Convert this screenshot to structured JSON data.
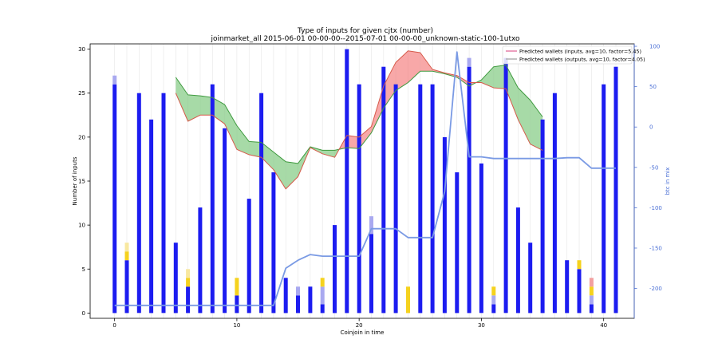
{
  "chart_data": {
    "type": "bar",
    "title": "Type of inputs for given cjtx (number)",
    "subtitle": "joinmarket_all 2015-06-01 00-00-00--2015-07-01 00-00-00_unknown-static-100-1utxo",
    "xlabel": "Coinjoin in time",
    "ylabel": "Number of inputs",
    "ylabel_right": "btc in mix",
    "xlim": [
      -2,
      42.5
    ],
    "ylim": [
      -0.6,
      30.6
    ],
    "ylim_right": [
      -237,
      103
    ],
    "xticks": [
      0,
      10,
      20,
      30,
      40
    ],
    "yticks": [
      0,
      5,
      10,
      15,
      20,
      25,
      30
    ],
    "yticks_right": [
      100,
      50,
      0,
      -50,
      -100,
      -150,
      -200
    ],
    "legend_position": "top-right",
    "legend": [
      "Predicted wallets (inputs, avg=10, factor=5.45)",
      "Predicted wallets (outputs, avg=10, factor=4.05)"
    ],
    "colors": {
      "blue": "#1c1cf0",
      "light_blue": "#a9a9f0",
      "yellow": "#f5d21e",
      "light_yellow": "#f8e8a0",
      "pink": "#f2a0a0",
      "green_fill": "#6cc16c",
      "red_fill": "#f46e6e",
      "mix_line": "#7a9ae4",
      "axis_right": "#4a6fd6"
    },
    "bars": [
      {
        "x": 0,
        "blue": 26,
        "light_blue": 1,
        "yellow": 0,
        "light_yellow": 0,
        "pink": 0
      },
      {
        "x": 1,
        "blue": 6,
        "light_blue": 0,
        "yellow": 1,
        "light_yellow": 1,
        "pink": 0
      },
      {
        "x": 2,
        "blue": 25,
        "light_blue": 0,
        "yellow": 0,
        "light_yellow": 0,
        "pink": 0
      },
      {
        "x": 3,
        "blue": 22,
        "light_blue": 0,
        "yellow": 0,
        "light_yellow": 0,
        "pink": 0
      },
      {
        "x": 4,
        "blue": 25,
        "light_blue": 0,
        "yellow": 0,
        "light_yellow": 0,
        "pink": 0
      },
      {
        "x": 5,
        "blue": 8,
        "light_blue": 0,
        "yellow": 0,
        "light_yellow": 0,
        "pink": 0
      },
      {
        "x": 6,
        "blue": 3,
        "light_blue": 0,
        "yellow": 1,
        "light_yellow": 1,
        "pink": 0
      },
      {
        "x": 7,
        "blue": 12,
        "light_blue": 0,
        "yellow": 0,
        "light_yellow": 0,
        "pink": 0
      },
      {
        "x": 8,
        "blue": 26,
        "light_blue": 0,
        "yellow": 0,
        "light_yellow": 0,
        "pink": 0
      },
      {
        "x": 9,
        "blue": 21,
        "light_blue": 0,
        "yellow": 0,
        "light_yellow": 0,
        "pink": 0
      },
      {
        "x": 10,
        "blue": 2,
        "light_blue": 0,
        "yellow": 2,
        "light_yellow": 0,
        "pink": 0
      },
      {
        "x": 11,
        "blue": 13,
        "light_blue": 0,
        "yellow": 0,
        "light_yellow": 0,
        "pink": 0
      },
      {
        "x": 12,
        "blue": 25,
        "light_blue": 0,
        "yellow": 0,
        "light_yellow": 0,
        "pink": 0
      },
      {
        "x": 13,
        "blue": 16,
        "light_blue": 0,
        "yellow": 0,
        "light_yellow": 0,
        "pink": 0
      },
      {
        "x": 14,
        "blue": 4,
        "light_blue": 0,
        "yellow": 0,
        "light_yellow": 0,
        "pink": 0
      },
      {
        "x": 15,
        "blue": 2,
        "light_blue": 1,
        "yellow": 0,
        "light_yellow": 0,
        "pink": 0
      },
      {
        "x": 16,
        "blue": 3,
        "light_blue": 0,
        "yellow": 0,
        "light_yellow": 0,
        "pink": 0
      },
      {
        "x": 17,
        "blue": 1,
        "light_blue": 2,
        "yellow": 1,
        "light_yellow": 0,
        "pink": 0
      },
      {
        "x": 18,
        "blue": 10,
        "light_blue": 0,
        "yellow": 0,
        "light_yellow": 0,
        "pink": 0
      },
      {
        "x": 19,
        "blue": 30,
        "light_blue": 0,
        "yellow": 0,
        "light_yellow": 0,
        "pink": 0
      },
      {
        "x": 20,
        "blue": 26,
        "light_blue": 0,
        "yellow": 0,
        "light_yellow": 0,
        "pink": 0
      },
      {
        "x": 21,
        "blue": 9,
        "light_blue": 2,
        "yellow": 0,
        "light_yellow": 0,
        "pink": 0
      },
      {
        "x": 22,
        "blue": 28,
        "light_blue": 0,
        "yellow": 0,
        "light_yellow": 0,
        "pink": 0
      },
      {
        "x": 23,
        "blue": 26,
        "light_blue": 0,
        "yellow": 0,
        "light_yellow": 0,
        "pink": 0
      },
      {
        "x": 24,
        "blue": 0,
        "light_blue": 0,
        "yellow": 3,
        "light_yellow": 0,
        "pink": 0
      },
      {
        "x": 25,
        "blue": 26,
        "light_blue": 0,
        "yellow": 0,
        "light_yellow": 0,
        "pink": 0
      },
      {
        "x": 26,
        "blue": 26,
        "light_blue": 0,
        "yellow": 0,
        "light_yellow": 0,
        "pink": 0
      },
      {
        "x": 27,
        "blue": 20,
        "light_blue": 0,
        "yellow": 0,
        "light_yellow": 0,
        "pink": 0
      },
      {
        "x": 28,
        "blue": 16,
        "light_blue": 0,
        "yellow": 0,
        "light_yellow": 0,
        "pink": 0
      },
      {
        "x": 29,
        "blue": 28,
        "light_blue": 1,
        "yellow": 0,
        "light_yellow": 0,
        "pink": 0
      },
      {
        "x": 30,
        "blue": 17,
        "light_blue": 0,
        "yellow": 0,
        "light_yellow": 0,
        "pink": 0
      },
      {
        "x": 31,
        "blue": 1,
        "light_blue": 1,
        "yellow": 1,
        "light_yellow": 0,
        "pink": 0
      },
      {
        "x": 32,
        "blue": 29,
        "light_blue": 0,
        "yellow": 0,
        "light_yellow": 0,
        "pink": 0
      },
      {
        "x": 33,
        "blue": 12,
        "light_blue": 0,
        "yellow": 0,
        "light_yellow": 0,
        "pink": 0
      },
      {
        "x": 34,
        "blue": 8,
        "light_blue": 0,
        "yellow": 0,
        "light_yellow": 0,
        "pink": 0
      },
      {
        "x": 35,
        "blue": 22,
        "light_blue": 0,
        "yellow": 0,
        "light_yellow": 0,
        "pink": 0
      },
      {
        "x": 36,
        "blue": 25,
        "light_blue": 0,
        "yellow": 0,
        "light_yellow": 0,
        "pink": 0
      },
      {
        "x": 37,
        "blue": 6,
        "light_blue": 0,
        "yellow": 0,
        "light_yellow": 0,
        "pink": 0
      },
      {
        "x": 38,
        "blue": 5,
        "light_blue": 0,
        "yellow": 1,
        "light_yellow": 0,
        "pink": 0
      },
      {
        "x": 39,
        "blue": 1,
        "light_blue": 1,
        "yellow": 1,
        "light_yellow": 0,
        "pink": 1
      },
      {
        "x": 40,
        "blue": 26,
        "light_blue": 0,
        "yellow": 0,
        "light_yellow": 0,
        "pink": 0
      },
      {
        "x": 41,
        "blue": 28,
        "light_blue": 0,
        "yellow": 0,
        "light_yellow": 0,
        "pink": 0
      }
    ],
    "predicted_inputs_line": {
      "x": [
        5,
        6,
        7,
        8,
        9,
        10,
        11,
        12,
        13,
        14,
        15,
        16,
        17,
        18,
        19,
        20,
        21,
        22,
        23,
        24,
        25,
        26,
        27,
        28,
        29,
        30,
        31,
        32,
        33,
        34,
        35
      ],
      "y": [
        25,
        21.8,
        22.5,
        22.5,
        21.5,
        18.6,
        18,
        17.7,
        16.3,
        14.1,
        15.5,
        18.8,
        18.1,
        17.7,
        20.2,
        20,
        21.2,
        25.8,
        28.5,
        29.8,
        29.6,
        27.7,
        27.3,
        27,
        26.2,
        26.2,
        25.6,
        25.5,
        22,
        19.2,
        18.5
      ]
    },
    "predicted_outputs_line": {
      "x": [
        5,
        6,
        7,
        8,
        9,
        10,
        11,
        12,
        13,
        14,
        15,
        16,
        17,
        18,
        19,
        20,
        21,
        22,
        23,
        24,
        25,
        26,
        27,
        28,
        29,
        30,
        31,
        32,
        33,
        34,
        35
      ],
      "y": [
        26.8,
        24.8,
        24.7,
        24.5,
        23.7,
        21.3,
        19.5,
        19.4,
        18.3,
        17.2,
        17,
        18.9,
        18.5,
        18.5,
        18.8,
        18.7,
        20.5,
        23.3,
        25.3,
        26.2,
        27.5,
        27.5,
        27.2,
        26.8,
        25.8,
        26.5,
        28,
        28.2,
        25.6,
        24.2,
        22.3
      ]
    },
    "btc_in_mix": {
      "x": [
        0,
        1,
        2,
        3,
        4,
        5,
        6,
        7,
        8,
        9,
        10,
        11,
        12,
        13,
        14,
        15,
        16,
        17,
        18,
        19,
        20,
        21,
        22,
        23,
        24,
        25,
        26,
        27,
        28,
        29,
        30,
        31,
        32,
        33,
        34,
        35,
        36,
        37,
        38,
        39,
        40,
        41
      ],
      "y": [
        -221,
        -221,
        -221,
        -221,
        -221,
        -221,
        -221,
        -221,
        -221,
        -221,
        -221,
        -221,
        -221,
        -221,
        -175,
        -165,
        -158,
        -160,
        -160,
        -160,
        -160,
        -126,
        -126,
        -126,
        -137,
        -137,
        -137,
        -80,
        93,
        -37,
        -37,
        -39,
        -39,
        -39,
        -39,
        -39,
        -39,
        -38,
        -38,
        -51,
        -51,
        -51
      ]
    }
  }
}
